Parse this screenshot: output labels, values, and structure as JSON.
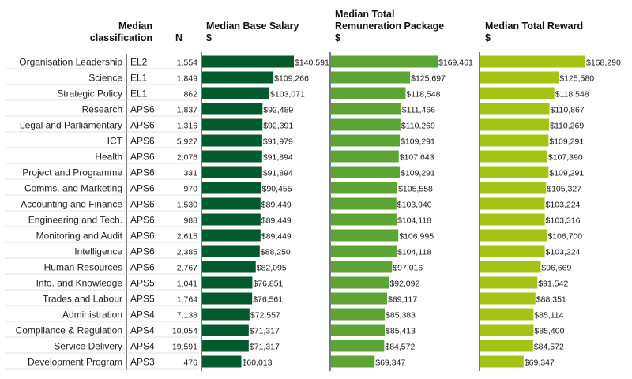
{
  "headers": {
    "classification": [
      "Median",
      "classification"
    ],
    "n": "N",
    "base": [
      "Median Base Salary",
      "$"
    ],
    "trp": [
      "Median Total",
      "Remuneration Package",
      "$"
    ],
    "reward": [
      "Median Total Reward",
      "$"
    ]
  },
  "chart_data": {
    "type": "bar",
    "orientation": "horizontal",
    "categories": [
      "Organisation Leadership",
      "Science",
      "Strategic Policy",
      "Research",
      "Legal and Parliamentary",
      "ICT",
      "Health",
      "Project and Programme",
      "Comms. and Marketing",
      "Accounting and Finance",
      "Engineering and Tech.",
      "Monitoring and Audit",
      "Intelligence",
      "Human Resources",
      "Info. and Knowledge",
      "Trades and Labour",
      "Administration",
      "Compliance & Regulation",
      "Service Delivery",
      "Development Program"
    ],
    "classification": [
      "EL2",
      "EL1",
      "EL1",
      "APS6",
      "APS6",
      "APS6",
      "APS6",
      "APS6",
      "APS6",
      "APS6",
      "APS6",
      "APS6",
      "APS6",
      "APS6",
      "APS5",
      "APS5",
      "APS4",
      "APS4",
      "APS4",
      "APS3"
    ],
    "n": [
      "1,554",
      "1,849",
      "862",
      "1,837",
      "1,316",
      "5,927",
      "2,076",
      "331",
      "970",
      "1,530",
      "988",
      "2,615",
      "2,385",
      "2,767",
      "1,041",
      "1,764",
      "7,138",
      "10,054",
      "19,591",
      "476"
    ],
    "series": [
      {
        "name": "Median Base Salary",
        "color": "#005a2b",
        "values": [
          140591,
          109266,
          103071,
          92489,
          92391,
          91979,
          91894,
          91894,
          90455,
          89449,
          89449,
          89449,
          88250,
          82095,
          76851,
          76561,
          72557,
          71317,
          71317,
          60013
        ],
        "labels": [
          "$140,591",
          "$109,266",
          "$103,071",
          "$92,489",
          "$92,391",
          "$91,979",
          "$91,894",
          "$91,894",
          "$90,455",
          "$89,449",
          "$89,449",
          "$89,449",
          "$88,250",
          "$82,095",
          "$76,851",
          "$76,561",
          "$72,557",
          "$71,317",
          "$71,317",
          "$60,013"
        ]
      },
      {
        "name": "Median Total Remuneration Package",
        "color": "#5ca534",
        "values": [
          169461,
          125697,
          118548,
          111466,
          110269,
          109291,
          107643,
          109291,
          105558,
          103940,
          104118,
          106995,
          104118,
          97016,
          92092,
          89117,
          85383,
          85413,
          84572,
          69347
        ],
        "labels": [
          "$169,461",
          "$125,697",
          "$118,548",
          "$111,466",
          "$110,269",
          "$109,291",
          "$107,643",
          "$109,291",
          "$105,558",
          "$103,940",
          "$104,118",
          "$106,995",
          "$104,118",
          "$97,016",
          "$92,092",
          "$89,117",
          "$85,383",
          "$85,413",
          "$84,572",
          "$69,347"
        ]
      },
      {
        "name": "Median Total Reward",
        "color": "#a5c315",
        "values": [
          168290,
          125580,
          118548,
          110867,
          110269,
          109291,
          107390,
          109291,
          105327,
          103224,
          103316,
          106700,
          103224,
          96669,
          91542,
          88351,
          85114,
          85400,
          84572,
          69347
        ],
        "labels": [
          "$168,290",
          "$125,580",
          "$118,548",
          "$110,867",
          "$110,269",
          "$109,291",
          "$107,390",
          "$109,291",
          "$105,327",
          "$103,224",
          "$103,316",
          "$106,700",
          "$103,224",
          "$96,669",
          "$91,542",
          "$88,351",
          "$85,114",
          "$85,400",
          "$84,572",
          "$69,347"
        ]
      }
    ],
    "xlabel": "",
    "ylabel": "",
    "grid": false,
    "legend": "none"
  }
}
